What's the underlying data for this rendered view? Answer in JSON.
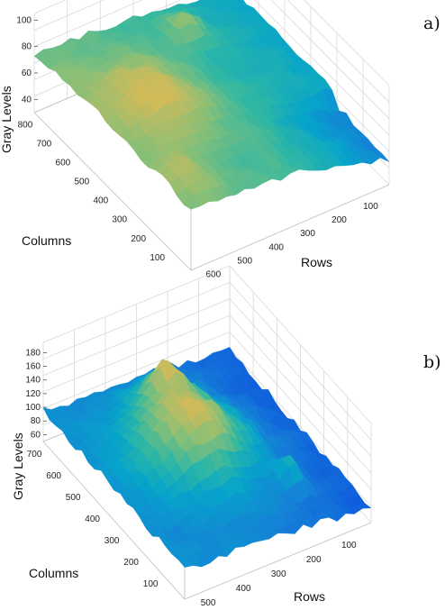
{
  "chart_data": [
    {
      "type": "surface",
      "panel_label": "a)",
      "zlabel": "Gray Levels",
      "xlabel": "Columns",
      "ylabel": "Rows",
      "z_ticks": [
        "40",
        "60",
        "80",
        "100"
      ],
      "column_ticks": [
        "100",
        "200",
        "300",
        "400",
        "500",
        "600",
        "700",
        "800"
      ],
      "row_ticks": [
        "100",
        "200",
        "300",
        "400",
        "500",
        "600"
      ],
      "zlim": [
        30,
        105
      ],
      "grid": true,
      "colormap": "parula",
      "colors": [
        "#352a87",
        "#0f5cdd",
        "#1481d6",
        "#06a4ca",
        "#2eb7a4",
        "#87bf77",
        "#d1bb59",
        "#fec832",
        "#f9fb0e"
      ]
    },
    {
      "type": "surface",
      "panel_label": "b)",
      "zlabel": "Gray Levels",
      "xlabel": "Columns",
      "ylabel": "Rows",
      "z_ticks": [
        "60",
        "80",
        "100",
        "120",
        "140",
        "160",
        "180"
      ],
      "column_ticks": [
        "100",
        "200",
        "300",
        "400",
        "500",
        "600",
        "700"
      ],
      "row_ticks": [
        "100",
        "200",
        "300",
        "400",
        "500"
      ],
      "zlim": [
        50,
        195
      ],
      "grid": true,
      "colormap": "parula",
      "colors": [
        "#352a87",
        "#0f5cdd",
        "#1481d6",
        "#06a4ca",
        "#2eb7a4",
        "#87bf77",
        "#d1bb59",
        "#fec832",
        "#f9fb0e"
      ]
    }
  ]
}
